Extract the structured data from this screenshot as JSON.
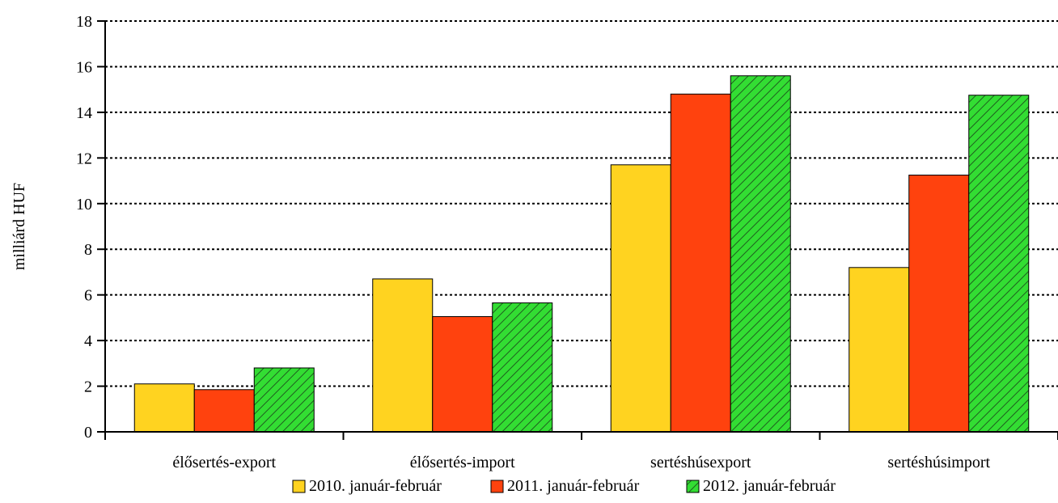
{
  "chart_data": {
    "type": "bar",
    "categories": [
      "élősertés-export",
      "élősertés-import",
      "sertéshúsexport",
      "sertéshúsimport"
    ],
    "series": [
      {
        "name": "2010. január-február",
        "values": [
          2.1,
          6.7,
          11.7,
          7.2
        ],
        "color": "#FFD320",
        "pattern": "solid"
      },
      {
        "name": "2011. január-február",
        "values": [
          1.85,
          5.05,
          14.8,
          11.25
        ],
        "color": "#FF420E",
        "pattern": "solid"
      },
      {
        "name": "2012. január-február",
        "values": [
          2.8,
          5.65,
          15.6,
          14.75
        ],
        "color": "#33DD33",
        "pattern": "diagonal-hatch"
      }
    ],
    "ylabel": "milliárd HUF",
    "xlabel": "",
    "title": "",
    "ylim": [
      0,
      18
    ],
    "yticks": [
      0,
      2,
      4,
      6,
      8,
      10,
      12,
      14,
      16,
      18
    ],
    "grid": "horizontal dotted",
    "legend_position": "bottom"
  }
}
